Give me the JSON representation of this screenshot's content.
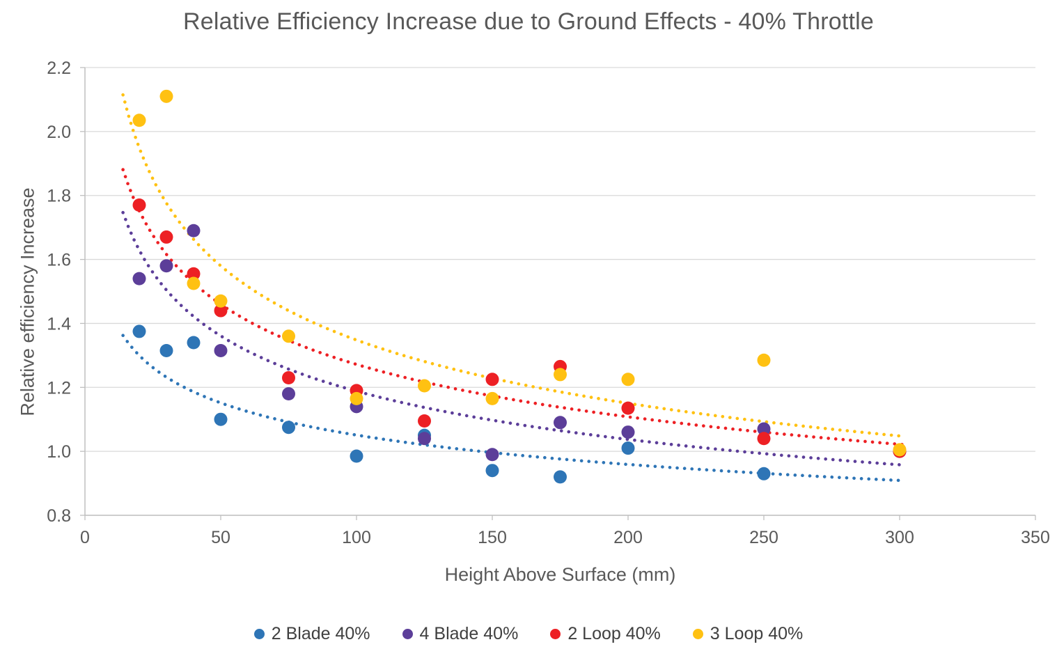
{
  "chart_data": {
    "type": "scatter",
    "title": "Relative Efficiency Increase due to Ground Effects - 40% Throttle",
    "xlabel": "Height Above Surface (mm)",
    "ylabel": "Relative efficiency Increase",
    "xlim": [
      0,
      350
    ],
    "ylim": [
      0.8,
      2.2
    ],
    "xticks": [
      0,
      50,
      100,
      150,
      200,
      250,
      300,
      350
    ],
    "yticks": [
      0.8,
      1.0,
      1.2,
      1.4,
      1.6,
      1.8,
      2.0,
      2.2
    ],
    "ytick_labels": [
      "0.8",
      "1.0",
      "1.2",
      "1.4",
      "1.6",
      "1.8",
      "2.0",
      "2.2"
    ],
    "grid": "horizontal-only",
    "legend_position": "bottom",
    "colors": {
      "grid": "#D9D9D9",
      "axis": "#BFBFBF",
      "title_text": "#595959",
      "tick_text": "#595959",
      "legend_text": "#404040"
    },
    "series": [
      {
        "name": "2 Blade 40%",
        "color": "#2E75B6",
        "marker": "circle",
        "points": [
          [
            20,
            1.375
          ],
          [
            30,
            1.315
          ],
          [
            40,
            1.34
          ],
          [
            50,
            1.1
          ],
          [
            75,
            1.075
          ],
          [
            100,
            0.985
          ],
          [
            125,
            1.05
          ],
          [
            150,
            0.94
          ],
          [
            175,
            0.92
          ],
          [
            200,
            1.01
          ],
          [
            250,
            0.93
          ],
          [
            300,
            1.0
          ]
        ],
        "trendline": {
          "type": "power",
          "a": 1.93,
          "b": -0.132,
          "style": "dotted"
        }
      },
      {
        "name": "4 Blade 40%",
        "color": "#5C3E99",
        "marker": "circle",
        "points": [
          [
            20,
            1.54
          ],
          [
            30,
            1.58
          ],
          [
            40,
            1.69
          ],
          [
            50,
            1.315
          ],
          [
            75,
            1.18
          ],
          [
            100,
            1.14
          ],
          [
            125,
            1.04
          ],
          [
            150,
            0.99
          ],
          [
            175,
            1.09
          ],
          [
            200,
            1.06
          ],
          [
            250,
            1.07
          ],
          [
            300,
            1.0
          ]
        ],
        "trendline": {
          "type": "power",
          "a": 2.93,
          "b": -0.196,
          "style": "dotted"
        }
      },
      {
        "name": "2 Loop 40%",
        "color": "#ED2024",
        "marker": "circle",
        "points": [
          [
            20,
            1.77
          ],
          [
            30,
            1.67
          ],
          [
            40,
            1.555
          ],
          [
            50,
            1.44
          ],
          [
            75,
            1.23
          ],
          [
            100,
            1.19
          ],
          [
            125,
            1.095
          ],
          [
            150,
            1.225
          ],
          [
            175,
            1.265
          ],
          [
            200,
            1.135
          ],
          [
            250,
            1.04
          ],
          [
            300,
            1.0
          ]
        ],
        "trendline": {
          "type": "power",
          "a": 3.18,
          "b": -0.199,
          "style": "dotted"
        }
      },
      {
        "name": "3 Loop 40%",
        "color": "#FFC112",
        "marker": "circle",
        "points": [
          [
            20,
            2.035
          ],
          [
            30,
            2.11
          ],
          [
            40,
            1.525
          ],
          [
            50,
            1.47
          ],
          [
            75,
            1.36
          ],
          [
            100,
            1.165
          ],
          [
            125,
            1.205
          ],
          [
            150,
            1.165
          ],
          [
            175,
            1.24
          ],
          [
            200,
            1.225
          ],
          [
            250,
            1.285
          ],
          [
            300,
            1.005
          ]
        ],
        "trendline": {
          "type": "power",
          "a": 3.87,
          "b": -0.229,
          "style": "dotted"
        }
      }
    ]
  }
}
